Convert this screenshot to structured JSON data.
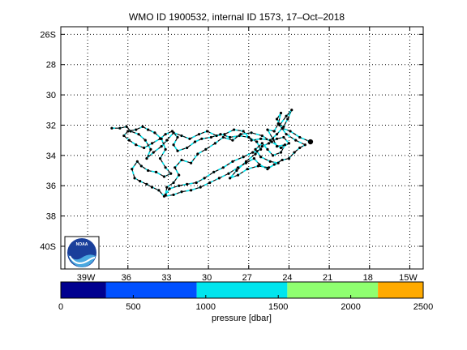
{
  "title": "WMO ID 1900532, internal ID 1573, 17–Oct–2018",
  "map": {
    "lon_range": [
      -41,
      -14
    ],
    "lat_range": [
      -41.5,
      -25.5
    ],
    "lon_ticks": [
      -39,
      -36,
      -33,
      -30,
      -27,
      -24,
      -21,
      -18,
      -15
    ],
    "lon_tick_labels": [
      "39W",
      "36",
      "33",
      "30",
      "27",
      "24",
      "21",
      "18",
      "15W"
    ],
    "lat_ticks": [
      -26,
      -28,
      -30,
      -32,
      -34,
      -36,
      -38,
      -40
    ],
    "lat_tick_labels": [
      "26S",
      "28",
      "30",
      "32",
      "34",
      "36",
      "38",
      "40S"
    ],
    "grid": true,
    "grid_style": "dotted",
    "track_color": "#000000",
    "segment_color": "#00e5ee",
    "final_position": [
      -22.4,
      -33.1
    ],
    "track": [
      [
        -22.4,
        -33.1
      ],
      [
        -23.2,
        -32.8
      ],
      [
        -23.9,
        -32.4
      ],
      [
        -24.5,
        -32.2
      ],
      [
        -24.9,
        -31.6
      ],
      [
        -24.6,
        -31.2
      ],
      [
        -24.8,
        -31.9
      ],
      [
        -25.1,
        -32.4
      ],
      [
        -25.6,
        -32.3
      ],
      [
        -25.2,
        -32.9
      ],
      [
        -24.9,
        -33.4
      ],
      [
        -24.3,
        -33.3
      ],
      [
        -24.6,
        -33.8
      ],
      [
        -25.2,
        -34.0
      ],
      [
        -25.6,
        -33.6
      ],
      [
        -26.0,
        -33.2
      ],
      [
        -26.5,
        -33.6
      ],
      [
        -26.1,
        -34.1
      ],
      [
        -25.4,
        -34.4
      ],
      [
        -24.8,
        -34.5
      ],
      [
        -25.5,
        -34.8
      ],
      [
        -26.3,
        -34.7
      ],
      [
        -27.1,
        -34.9
      ],
      [
        -27.8,
        -35.3
      ],
      [
        -28.4,
        -35.5
      ],
      [
        -27.9,
        -35.0
      ],
      [
        -27.2,
        -34.4
      ],
      [
        -26.5,
        -33.9
      ],
      [
        -26.0,
        -33.4
      ],
      [
        -25.5,
        -33.2
      ],
      [
        -24.9,
        -32.9
      ],
      [
        -24.4,
        -32.8
      ],
      [
        -24.0,
        -33.2
      ],
      [
        -24.6,
        -33.5
      ],
      [
        -25.3,
        -33.1
      ],
      [
        -26.0,
        -32.7
      ],
      [
        -26.8,
        -32.5
      ],
      [
        -27.6,
        -32.6
      ],
      [
        -28.2,
        -33.0
      ],
      [
        -28.9,
        -32.8
      ],
      [
        -29.5,
        -33.2
      ],
      [
        -30.2,
        -33.6
      ],
      [
        -30.8,
        -33.9
      ],
      [
        -31.3,
        -34.5
      ],
      [
        -32.0,
        -34.3
      ],
      [
        -32.5,
        -34.8
      ],
      [
        -32.2,
        -35.3
      ],
      [
        -32.6,
        -35.8
      ],
      [
        -33.1,
        -36.1
      ],
      [
        -33.2,
        -36.6
      ],
      [
        -32.9,
        -36.2
      ],
      [
        -32.2,
        -36.0
      ],
      [
        -31.6,
        -35.9
      ],
      [
        -30.9,
        -35.8
      ],
      [
        -30.3,
        -35.5
      ],
      [
        -29.6,
        -35.1
      ],
      [
        -28.9,
        -34.8
      ],
      [
        -28.2,
        -34.4
      ],
      [
        -27.4,
        -34.1
      ],
      [
        -26.7,
        -33.8
      ],
      [
        -26.1,
        -33.6
      ],
      [
        -26.4,
        -33.1
      ],
      [
        -27.0,
        -32.8
      ],
      [
        -27.7,
        -32.7
      ],
      [
        -28.4,
        -32.8
      ],
      [
        -29.1,
        -32.6
      ],
      [
        -29.8,
        -32.8
      ],
      [
        -30.5,
        -32.9
      ],
      [
        -31.0,
        -33.1
      ],
      [
        -31.6,
        -33.5
      ],
      [
        -32.3,
        -33.7
      ],
      [
        -32.6,
        -33.3
      ],
      [
        -32.3,
        -32.8
      ],
      [
        -32.7,
        -32.4
      ],
      [
        -33.2,
        -32.6
      ],
      [
        -33.6,
        -32.9
      ],
      [
        -34.2,
        -33.2
      ],
      [
        -34.8,
        -33.5
      ],
      [
        -35.4,
        -33.3
      ],
      [
        -35.9,
        -33.0
      ],
      [
        -36.3,
        -32.7
      ],
      [
        -36.0,
        -32.4
      ],
      [
        -35.4,
        -32.3
      ],
      [
        -34.9,
        -32.1
      ],
      [
        -34.5,
        -32.3
      ],
      [
        -34.0,
        -32.5
      ],
      [
        -33.5,
        -32.9
      ],
      [
        -33.2,
        -33.6
      ],
      [
        -33.6,
        -34.2
      ],
      [
        -33.2,
        -34.8
      ],
      [
        -32.8,
        -35.2
      ],
      [
        -33.3,
        -35.4
      ],
      [
        -33.9,
        -35.1
      ],
      [
        -34.5,
        -35.0
      ],
      [
        -35.0,
        -34.7
      ],
      [
        -35.3,
        -34.4
      ],
      [
        -35.7,
        -34.9
      ],
      [
        -35.5,
        -35.5
      ],
      [
        -35.1,
        -35.7
      ],
      [
        -34.6,
        -35.9
      ],
      [
        -34.2,
        -36.1
      ],
      [
        -33.7,
        -36.3
      ],
      [
        -33.3,
        -36.7
      ],
      [
        -32.6,
        -36.6
      ],
      [
        -32.0,
        -36.4
      ],
      [
        -31.3,
        -36.3
      ],
      [
        -30.6,
        -36.1
      ],
      [
        -29.9,
        -35.8
      ],
      [
        -29.2,
        -35.5
      ],
      [
        -28.5,
        -35.2
      ],
      [
        -27.8,
        -34.8
      ],
      [
        -27.2,
        -34.5
      ],
      [
        -26.6,
        -34.2
      ],
      [
        -26.2,
        -34.6
      ],
      [
        -25.6,
        -34.9
      ],
      [
        -25.1,
        -34.6
      ],
      [
        -24.5,
        -34.3
      ],
      [
        -24.0,
        -34.2
      ],
      [
        -23.6,
        -33.8
      ],
      [
        -23.2,
        -33.5
      ],
      [
        -22.8,
        -33.3
      ],
      [
        -23.5,
        -33.0
      ],
      [
        -24.2,
        -32.6
      ],
      [
        -24.7,
        -32.0
      ],
      [
        -24.2,
        -31.4
      ],
      [
        -23.8,
        -31.0
      ],
      [
        -24.1,
        -31.6
      ],
      [
        -24.4,
        -32.1
      ],
      [
        -24.9,
        -32.6
      ],
      [
        -25.4,
        -33.0
      ],
      [
        -26.1,
        -32.9
      ],
      [
        -26.8,
        -33.0
      ],
      [
        -27.4,
        -32.4
      ],
      [
        -28.1,
        -32.3
      ],
      [
        -28.8,
        -32.6
      ],
      [
        -29.4,
        -32.7
      ],
      [
        -30.1,
        -32.4
      ],
      [
        -30.7,
        -32.6
      ],
      [
        -31.4,
        -32.9
      ],
      [
        -32.0,
        -32.7
      ],
      [
        -32.6,
        -32.5
      ],
      [
        -33.1,
        -33.0
      ],
      [
        -33.5,
        -33.4
      ],
      [
        -34.1,
        -33.8
      ],
      [
        -34.6,
        -34.2
      ],
      [
        -34.3,
        -33.6
      ],
      [
        -34.7,
        -33.0
      ],
      [
        -35.2,
        -32.6
      ],
      [
        -35.8,
        -32.4
      ],
      [
        -36.1,
        -32.1
      ],
      [
        -36.6,
        -32.2
      ],
      [
        -37.2,
        -32.2
      ]
    ]
  },
  "colorbar": {
    "label": "pressure [dbar]",
    "ticks": [
      0,
      500,
      1000,
      1500,
      2000,
      2500
    ],
    "range": [
      0,
      2500
    ],
    "bins": [
      {
        "from": 0,
        "to": 312.5,
        "color": "#00008f"
      },
      {
        "from": 312.5,
        "to": 937.5,
        "color": "#0050ff"
      },
      {
        "from": 937.5,
        "to": 1562.5,
        "color": "#00e5ee"
      },
      {
        "from": 1562.5,
        "to": 2187.5,
        "color": "#8fff70"
      },
      {
        "from": 2187.5,
        "to": 2500,
        "color": "#ffaa00"
      }
    ]
  },
  "logo": {
    "text": "NOAA"
  }
}
